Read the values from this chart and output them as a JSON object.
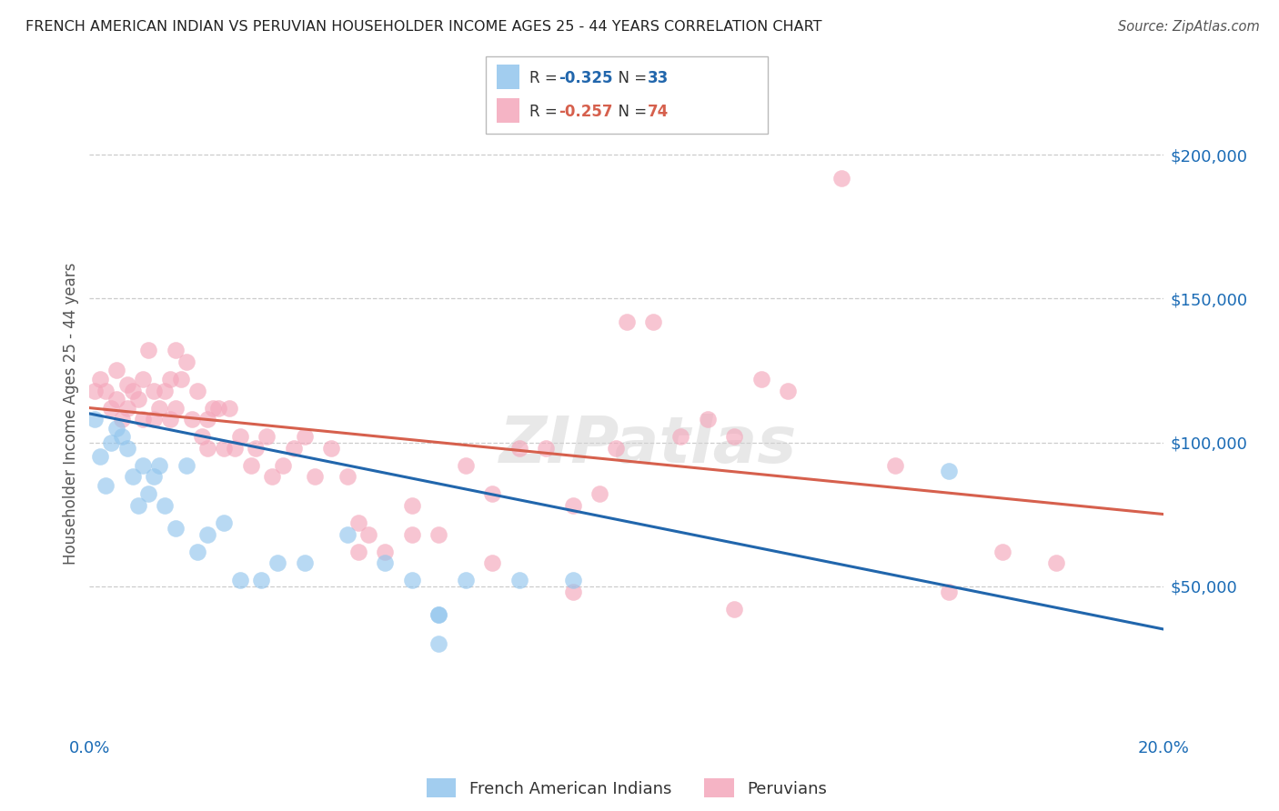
{
  "title": "FRENCH AMERICAN INDIAN VS PERUVIAN HOUSEHOLDER INCOME AGES 25 - 44 YEARS CORRELATION CHART",
  "source": "Source: ZipAtlas.com",
  "ylabel": "Householder Income Ages 25 - 44 years",
  "xlim": [
    0.0,
    0.2
  ],
  "ylim": [
    0,
    220000
  ],
  "xticks": [
    0.0,
    0.2
  ],
  "xticklabels": [
    "0.0%",
    "20.0%"
  ],
  "ytick_positions": [
    50000,
    100000,
    150000,
    200000
  ],
  "ytick_labels": [
    "$50,000",
    "$100,000",
    "$150,000",
    "$200,000"
  ],
  "legend_label_blue": "French American Indians",
  "legend_label_pink": "Peruvians",
  "R_blue": "-0.325",
  "N_blue": "33",
  "R_pink": "-0.257",
  "N_pink": "74",
  "blue_color": "#92C5ED",
  "pink_color": "#F4A7BB",
  "blue_line_color": "#2166AC",
  "pink_line_color": "#D6604D",
  "background_color": "#ffffff",
  "grid_color": "#cccccc",
  "blue_x": [
    0.001,
    0.002,
    0.003,
    0.004,
    0.005,
    0.006,
    0.007,
    0.008,
    0.009,
    0.01,
    0.011,
    0.012,
    0.013,
    0.014,
    0.016,
    0.018,
    0.02,
    0.022,
    0.025,
    0.028,
    0.032,
    0.035,
    0.04,
    0.048,
    0.055,
    0.06,
    0.065,
    0.07,
    0.08,
    0.09,
    0.065,
    0.16,
    0.065
  ],
  "blue_y": [
    108000,
    95000,
    85000,
    100000,
    105000,
    102000,
    98000,
    88000,
    78000,
    92000,
    82000,
    88000,
    92000,
    78000,
    70000,
    92000,
    62000,
    68000,
    72000,
    52000,
    52000,
    58000,
    58000,
    68000,
    58000,
    52000,
    40000,
    52000,
    52000,
    52000,
    40000,
    90000,
    30000
  ],
  "pink_x": [
    0.001,
    0.002,
    0.003,
    0.004,
    0.005,
    0.005,
    0.006,
    0.007,
    0.007,
    0.008,
    0.009,
    0.01,
    0.01,
    0.011,
    0.012,
    0.012,
    0.013,
    0.014,
    0.015,
    0.015,
    0.016,
    0.016,
    0.017,
    0.018,
    0.019,
    0.02,
    0.021,
    0.022,
    0.022,
    0.023,
    0.024,
    0.025,
    0.026,
    0.027,
    0.028,
    0.03,
    0.031,
    0.033,
    0.034,
    0.036,
    0.038,
    0.04,
    0.042,
    0.045,
    0.048,
    0.05,
    0.052,
    0.055,
    0.06,
    0.065,
    0.07,
    0.075,
    0.08,
    0.085,
    0.09,
    0.095,
    0.098,
    0.1,
    0.105,
    0.11,
    0.115,
    0.12,
    0.125,
    0.13,
    0.14,
    0.15,
    0.16,
    0.17,
    0.18,
    0.05,
    0.06,
    0.075,
    0.09,
    0.12
  ],
  "pink_y": [
    118000,
    122000,
    118000,
    112000,
    125000,
    115000,
    108000,
    120000,
    112000,
    118000,
    115000,
    122000,
    108000,
    132000,
    108000,
    118000,
    112000,
    118000,
    108000,
    122000,
    132000,
    112000,
    122000,
    128000,
    108000,
    118000,
    102000,
    98000,
    108000,
    112000,
    112000,
    98000,
    112000,
    98000,
    102000,
    92000,
    98000,
    102000,
    88000,
    92000,
    98000,
    102000,
    88000,
    98000,
    88000,
    72000,
    68000,
    62000,
    78000,
    68000,
    92000,
    82000,
    98000,
    98000,
    78000,
    82000,
    98000,
    142000,
    142000,
    102000,
    108000,
    102000,
    122000,
    118000,
    192000,
    92000,
    48000,
    62000,
    58000,
    62000,
    68000,
    58000,
    48000,
    42000
  ]
}
